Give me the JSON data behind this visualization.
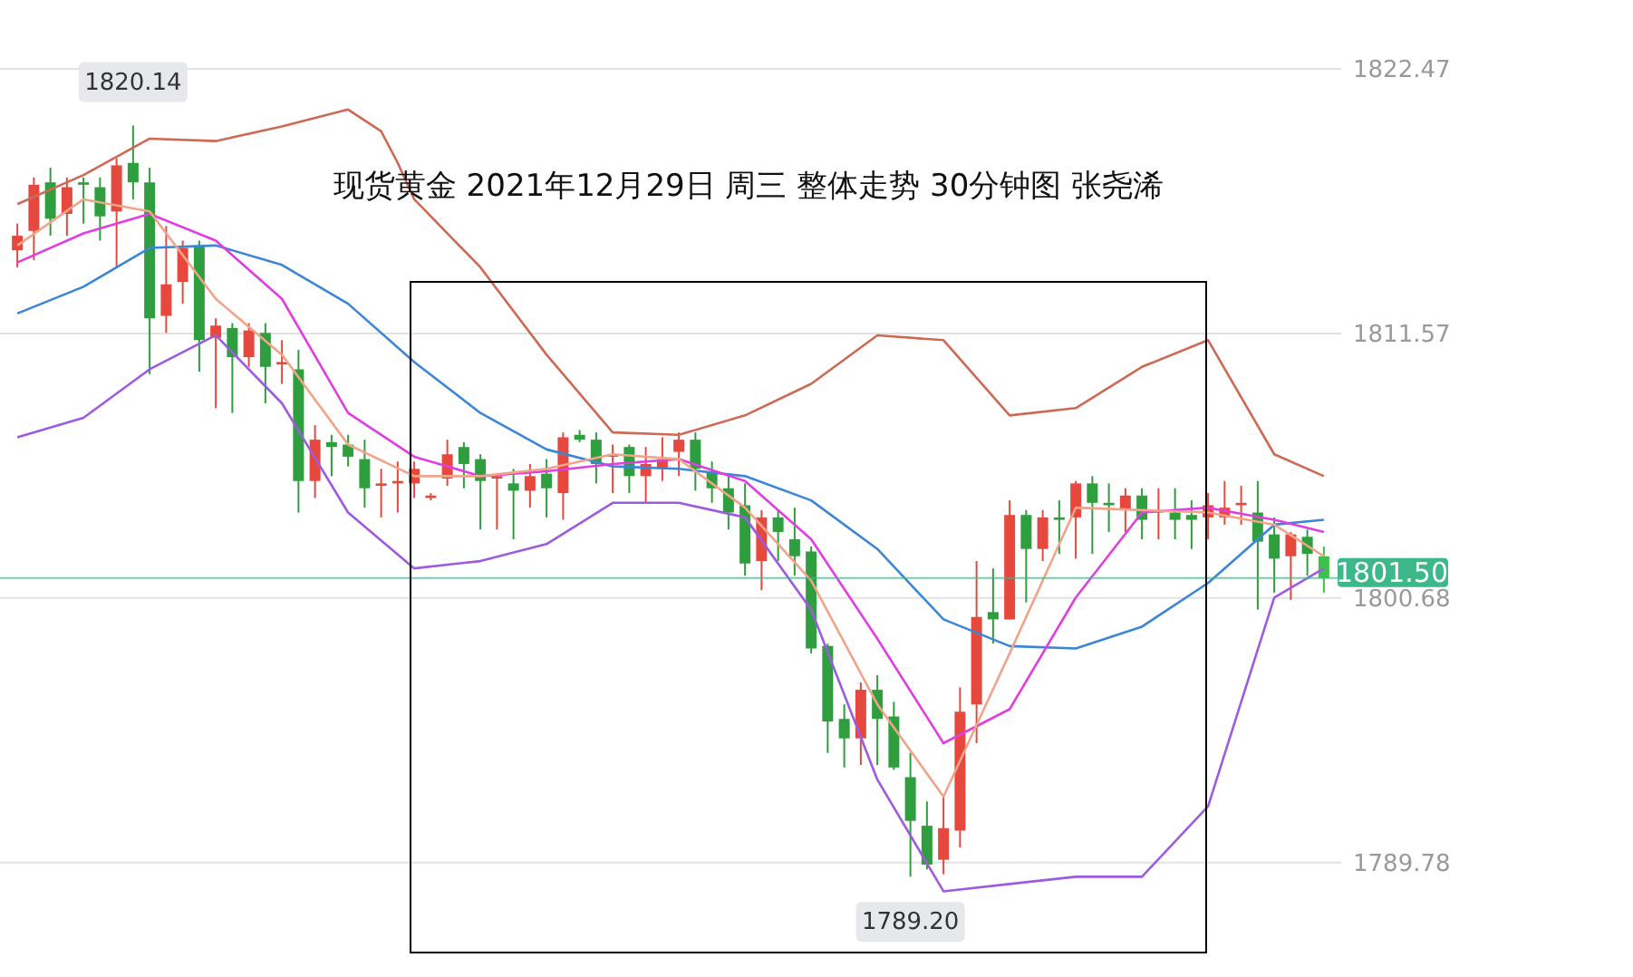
{
  "chart_data": {
    "type": "candlestick",
    "title": "现货黄金 2021年12月29日 周三 整体走势 30分钟图  张尧浠",
    "categories": [
      null,
      null,
      null,
      null,
      null,
      null,
      null,
      null,
      null,
      null,
      null,
      null,
      null,
      null,
      null,
      null,
      null,
      null,
      null,
      null,
      null,
      null,
      null,
      null,
      null,
      null,
      null,
      null,
      null,
      null,
      null,
      null,
      null,
      null,
      null,
      null,
      null,
      null,
      null,
      null,
      null,
      null,
      null,
      null,
      null,
      null,
      null,
      null,
      null,
      null,
      null,
      null,
      null,
      null,
      null,
      null,
      null,
      null,
      null,
      null,
      null,
      null,
      null,
      null,
      null,
      null,
      null,
      null,
      null,
      null,
      null,
      null,
      null,
      null,
      null,
      null,
      null,
      null,
      null,
      null
    ],
    "ohlc": [
      [
        1815.0,
        1816.1,
        1814.3,
        1815.6
      ],
      [
        1815.8,
        1818.0,
        1814.6,
        1817.7
      ],
      [
        1817.8,
        1818.4,
        1815.6,
        1816.3
      ],
      [
        1816.5,
        1818.0,
        1815.6,
        1817.6
      ],
      [
        1817.8,
        1818.0,
        1816.1,
        1817.7
      ],
      [
        1817.6,
        1818.0,
        1815.4,
        1816.4
      ],
      [
        1816.6,
        1818.8,
        1814.3,
        1818.5
      ],
      [
        1818.6,
        1820.14,
        1817.1,
        1817.8
      ],
      [
        1817.8,
        1818.4,
        1809.9,
        1812.2
      ],
      [
        1812.3,
        1816.0,
        1811.6,
        1813.6
      ],
      [
        1813.7,
        1815.4,
        1812.8,
        1815.1
      ],
      [
        1815.2,
        1815.4,
        1810.0,
        1811.3
      ],
      [
        1811.4,
        1812.2,
        1808.5,
        1811.9
      ],
      [
        1811.8,
        1812.0,
        1808.3,
        1810.6
      ],
      [
        1810.6,
        1812.0,
        1810.2,
        1811.7
      ],
      [
        1811.6,
        1812.0,
        1808.7,
        1810.2
      ],
      [
        1810.3,
        1811.3,
        1809.5,
        1810.4
      ],
      [
        1810.1,
        1810.9,
        1804.2,
        1805.5
      ],
      [
        1805.5,
        1807.8,
        1804.8,
        1807.2
      ],
      [
        1807.1,
        1807.4,
        1805.7,
        1806.9
      ],
      [
        1807.0,
        1807.4,
        1806.1,
        1806.5
      ],
      [
        1806.4,
        1807.2,
        1804.4,
        1805.2
      ],
      [
        1805.3,
        1806.0,
        1804.0,
        1805.4
      ],
      [
        1805.4,
        1806.3,
        1804.2,
        1805.5
      ],
      [
        1805.4,
        1806.3,
        1804.8,
        1806.0
      ],
      [
        1804.8,
        1805.0,
        1804.7,
        1804.9
      ],
      [
        1805.6,
        1807.2,
        1805.3,
        1806.6
      ],
      [
        1806.9,
        1807.1,
        1805.2,
        1806.2
      ],
      [
        1806.4,
        1806.6,
        1803.5,
        1805.5
      ],
      [
        1805.6,
        1805.8,
        1803.5,
        1805.7
      ],
      [
        1805.4,
        1806.0,
        1803.1,
        1805.1
      ],
      [
        1805.1,
        1806.2,
        1804.4,
        1805.7
      ],
      [
        1805.8,
        1806.4,
        1804.0,
        1805.2
      ],
      [
        1805.0,
        1807.5,
        1803.9,
        1807.3
      ],
      [
        1807.4,
        1807.6,
        1807.1,
        1807.2
      ],
      [
        1807.2,
        1807.5,
        1805.4,
        1806.2
      ],
      [
        1806.5,
        1807.0,
        1805.0,
        1806.6
      ],
      [
        1806.9,
        1807.0,
        1805.0,
        1805.7
      ],
      [
        1805.7,
        1806.9,
        1804.6,
        1806.2
      ],
      [
        1806.0,
        1807.3,
        1805.5,
        1806.4
      ],
      [
        1806.7,
        1807.5,
        1805.7,
        1807.2
      ],
      [
        1807.2,
        1807.5,
        1805.1,
        1806.0
      ],
      [
        1805.9,
        1806.3,
        1804.6,
        1805.2
      ],
      [
        1805.2,
        1805.7,
        1803.5,
        1804.2
      ],
      [
        1804.5,
        1805.4,
        1801.6,
        1802.1
      ],
      [
        1802.2,
        1804.3,
        1801.0,
        1804.0
      ],
      [
        1804.0,
        1804.3,
        1802.2,
        1803.4
      ],
      [
        1803.1,
        1804.4,
        1801.6,
        1802.4
      ],
      [
        1802.6,
        1802.8,
        1798.4,
        1798.6
      ],
      [
        1798.7,
        1798.8,
        1794.3,
        1795.6
      ],
      [
        1795.7,
        1796.3,
        1793.7,
        1794.9
      ],
      [
        1794.9,
        1797.2,
        1793.8,
        1796.9
      ],
      [
        1796.9,
        1797.5,
        1793.8,
        1795.7
      ],
      [
        1795.8,
        1796.4,
        1793.6,
        1793.7
      ],
      [
        1793.3,
        1794.3,
        1789.2,
        1791.5
      ],
      [
        1791.3,
        1792.3,
        1789.5,
        1789.7
      ],
      [
        1789.9,
        1792.5,
        1789.3,
        1791.2
      ],
      [
        1791.1,
        1797.0,
        1790.4,
        1796.0
      ],
      [
        1796.3,
        1802.2,
        1794.7,
        1799.9
      ],
      [
        1800.1,
        1801.9,
        1798.8,
        1799.8
      ],
      [
        1799.8,
        1804.7,
        1799.8,
        1804.1
      ],
      [
        1804.1,
        1804.3,
        1800.5,
        1802.7
      ],
      [
        1802.7,
        1804.3,
        1802.2,
        1804.0
      ],
      [
        1804.0,
        1804.7,
        1802.5,
        1803.9
      ],
      [
        1804.0,
        1805.5,
        1802.3,
        1805.4
      ],
      [
        1805.4,
        1805.7,
        1802.5,
        1804.6
      ],
      [
        1804.6,
        1805.4,
        1803.4,
        1804.5
      ],
      [
        1804.3,
        1805.2,
        1803.4,
        1804.9
      ],
      [
        1804.9,
        1805.2,
        1803.1,
        1803.9
      ],
      [
        1804.2,
        1805.2,
        1803.1,
        1804.3
      ],
      [
        1804.2,
        1805.2,
        1803.1,
        1803.9
      ],
      [
        1804.1,
        1804.7,
        1802.7,
        1803.9
      ],
      [
        1804.0,
        1805.0,
        1803.1,
        1804.5
      ],
      [
        1804.0,
        1805.5,
        1803.7,
        1804.4
      ],
      [
        1804.5,
        1805.3,
        1803.7,
        1804.6
      ],
      [
        1804.2,
        1805.5,
        1800.2,
        1803.0
      ],
      [
        1803.3,
        1804.0,
        1800.9,
        1802.3
      ],
      [
        1802.4,
        1803.4,
        1800.6,
        1803.3
      ],
      [
        1803.2,
        1803.5,
        1801.6,
        1802.5
      ],
      [
        1802.4,
        1802.8,
        1800.9,
        1801.5
      ]
    ],
    "colors": [
      "#e6483d",
      "#e6483d",
      "#2e9e3e",
      "#e6483d",
      "#2e9e3e",
      "#2e9e3e",
      "#e6483d",
      "#2e9e3e",
      "#2e9e3e",
      "#e6483d",
      "#e6483d",
      "#2e9e3e",
      "#e6483d",
      "#2e9e3e",
      "#e6483d",
      "#2e9e3e",
      "#e6483d",
      "#2e9e3e",
      "#e6483d",
      "#2e9e3e",
      "#2e9e3e",
      "#2e9e3e",
      "#e6483d",
      "#e6483d",
      "#e6483d",
      "#e6483d",
      "#e6483d",
      "#2e9e3e",
      "#2e9e3e",
      "#e6483d",
      "#2e9e3e",
      "#e6483d",
      "#2e9e3e",
      "#e6483d",
      "#2e9e3e",
      "#2e9e3e",
      "#e6483d",
      "#2e9e3e",
      "#e6483d",
      "#e6483d",
      "#e6483d",
      "#2e9e3e",
      "#2e9e3e",
      "#2e9e3e",
      "#2e9e3e",
      "#e6483d",
      "#2e9e3e",
      "#2e9e3e",
      "#2e9e3e",
      "#2e9e3e",
      "#2e9e3e",
      "#e6483d",
      "#2e9e3e",
      "#2e9e3e",
      "#2e9e3e",
      "#2e9e3e",
      "#e6483d",
      "#e6483d",
      "#e6483d",
      "#2e9e3e",
      "#e6483d",
      "#2e9e3e",
      "#e6483d",
      "#2e9e3e",
      "#e6483d",
      "#2e9e3e",
      "#2e9e3e",
      "#e6483d",
      "#2e9e3e",
      "#e6483d",
      "#2e9e3e",
      "#2e9e3e",
      "#e6483d",
      "#e6483d",
      "#e6483d",
      "#2e9e3e",
      "#2e9e3e",
      "#e6483d",
      "#2e9e3e",
      "#3cc24a"
    ],
    "series": [
      {
        "type": "line",
        "color": "#cd6a55",
        "values": [
          1816.9,
          null,
          null,
          null,
          1818.1,
          null,
          null,
          null,
          1819.6,
          null,
          null,
          null,
          1819.5,
          null,
          null,
          null,
          1820.1,
          null,
          null,
          null,
          1820.8,
          null,
          1819.9,
          1818.6,
          1817.1,
          null,
          null,
          null,
          1814.3,
          null,
          null,
          null,
          1810.7,
          null,
          null,
          null,
          1807.5,
          null,
          null,
          null,
          1807.4,
          null,
          null,
          null,
          1808.2,
          null,
          null,
          null,
          1809.5,
          null,
          null,
          null,
          1811.5,
          null,
          null,
          null,
          1811.3,
          null,
          null,
          null,
          1808.2,
          null,
          null,
          null,
          1808.5,
          null,
          null,
          null,
          1810.2,
          null,
          null,
          null,
          1811.3,
          null,
          null,
          null,
          1806.6,
          null,
          null,
          1805.7
        ]
      },
      {
        "type": "line",
        "color": "#3b86d6",
        "values": [
          1812.4,
          null,
          null,
          null,
          1813.5,
          null,
          null,
          null,
          1815.1,
          null,
          null,
          null,
          1815.2,
          null,
          null,
          null,
          1814.4,
          null,
          null,
          null,
          1812.8,
          null,
          null,
          null,
          1810.4,
          null,
          null,
          null,
          1808.3,
          null,
          null,
          null,
          1806.8,
          null,
          null,
          null,
          1806.1,
          null,
          null,
          null,
          1806.0,
          null,
          null,
          null,
          1805.7,
          null,
          null,
          null,
          1804.7,
          null,
          null,
          null,
          1802.7,
          null,
          null,
          null,
          1799.8,
          null,
          null,
          null,
          1798.7,
          null,
          null,
          null,
          1798.6,
          null,
          null,
          null,
          1799.5,
          null,
          null,
          null,
          1801.3,
          null,
          null,
          null,
          1803.7,
          null,
          null,
          1803.9
        ]
      },
      {
        "type": "line",
        "color": "#9d5be0",
        "values": [
          1807.3,
          null,
          null,
          null,
          1808.1,
          null,
          null,
          null,
          1810.1,
          null,
          null,
          null,
          1811.5,
          null,
          null,
          null,
          1808.7,
          null,
          null,
          null,
          1804.2,
          null,
          null,
          null,
          1801.9,
          null,
          null,
          null,
          1802.2,
          null,
          null,
          null,
          1802.9,
          null,
          null,
          null,
          1804.6,
          null,
          null,
          null,
          1804.6,
          null,
          null,
          null,
          1804.0,
          null,
          null,
          null,
          1800.2,
          null,
          null,
          null,
          1793.2,
          null,
          null,
          null,
          1788.6,
          null,
          null,
          null,
          1788.9,
          null,
          null,
          null,
          1789.2,
          null,
          null,
          null,
          1789.2,
          null,
          null,
          null,
          1792.1,
          null,
          null,
          null,
          1800.7,
          null,
          null,
          1801.9
        ]
      },
      {
        "type": "line",
        "color": "#e03ee0",
        "values": [
          1814.5,
          null,
          null,
          null,
          1815.7,
          null,
          null,
          null,
          1816.5,
          null,
          null,
          null,
          1815.4,
          null,
          null,
          null,
          1813.0,
          null,
          null,
          null,
          1808.3,
          null,
          null,
          null,
          1806.5,
          null,
          null,
          null,
          1805.7,
          null,
          null,
          null,
          1805.9,
          null,
          null,
          null,
          1806.2,
          null,
          null,
          null,
          1806.4,
          null,
          null,
          null,
          1805.5,
          null,
          null,
          null,
          1803.1,
          null,
          null,
          null,
          1799.0,
          null,
          null,
          null,
          1794.7,
          null,
          null,
          null,
          1796.1,
          null,
          null,
          null,
          1800.7,
          null,
          null,
          null,
          1804.2,
          null,
          null,
          null,
          1804.4,
          null,
          null,
          null,
          1803.9,
          null,
          null,
          1803.4
        ]
      },
      {
        "type": "line",
        "color": "#f0a48a",
        "values": [
          1815.2,
          null,
          null,
          null,
          1817.1,
          null,
          null,
          null,
          1816.6,
          null,
          null,
          null,
          1813.0,
          null,
          null,
          null,
          1810.7,
          null,
          null,
          null,
          1807.0,
          null,
          null,
          null,
          1805.7,
          null,
          null,
          null,
          1805.7,
          null,
          null,
          null,
          1806.0,
          null,
          null,
          null,
          1806.6,
          null,
          null,
          null,
          1806.4,
          null,
          null,
          null,
          1804.4,
          null,
          null,
          null,
          1801.4,
          null,
          null,
          null,
          1796.3,
          null,
          null,
          null,
          1792.5,
          null,
          null,
          null,
          1798.4,
          null,
          null,
          null,
          1804.4,
          null,
          null,
          null,
          1804.3,
          null,
          null,
          null,
          1804.2,
          null,
          null,
          null,
          1803.7,
          null,
          null,
          1802.4
        ]
      }
    ],
    "ylim": [
      1785.07,
      1825.31
    ],
    "yticks": [
      1822.47,
      1811.57,
      1800.68,
      1789.78
    ],
    "grid": "y",
    "ref_lines": [
      {
        "axis": "y",
        "value": 1801.5,
        "label": "1801.50",
        "color": "#3cb88a"
      }
    ],
    "annotations": [
      {
        "text": "1820.14",
        "y": 1820.14
      },
      {
        "text": "1789.20",
        "y": 1789.2
      }
    ]
  }
}
